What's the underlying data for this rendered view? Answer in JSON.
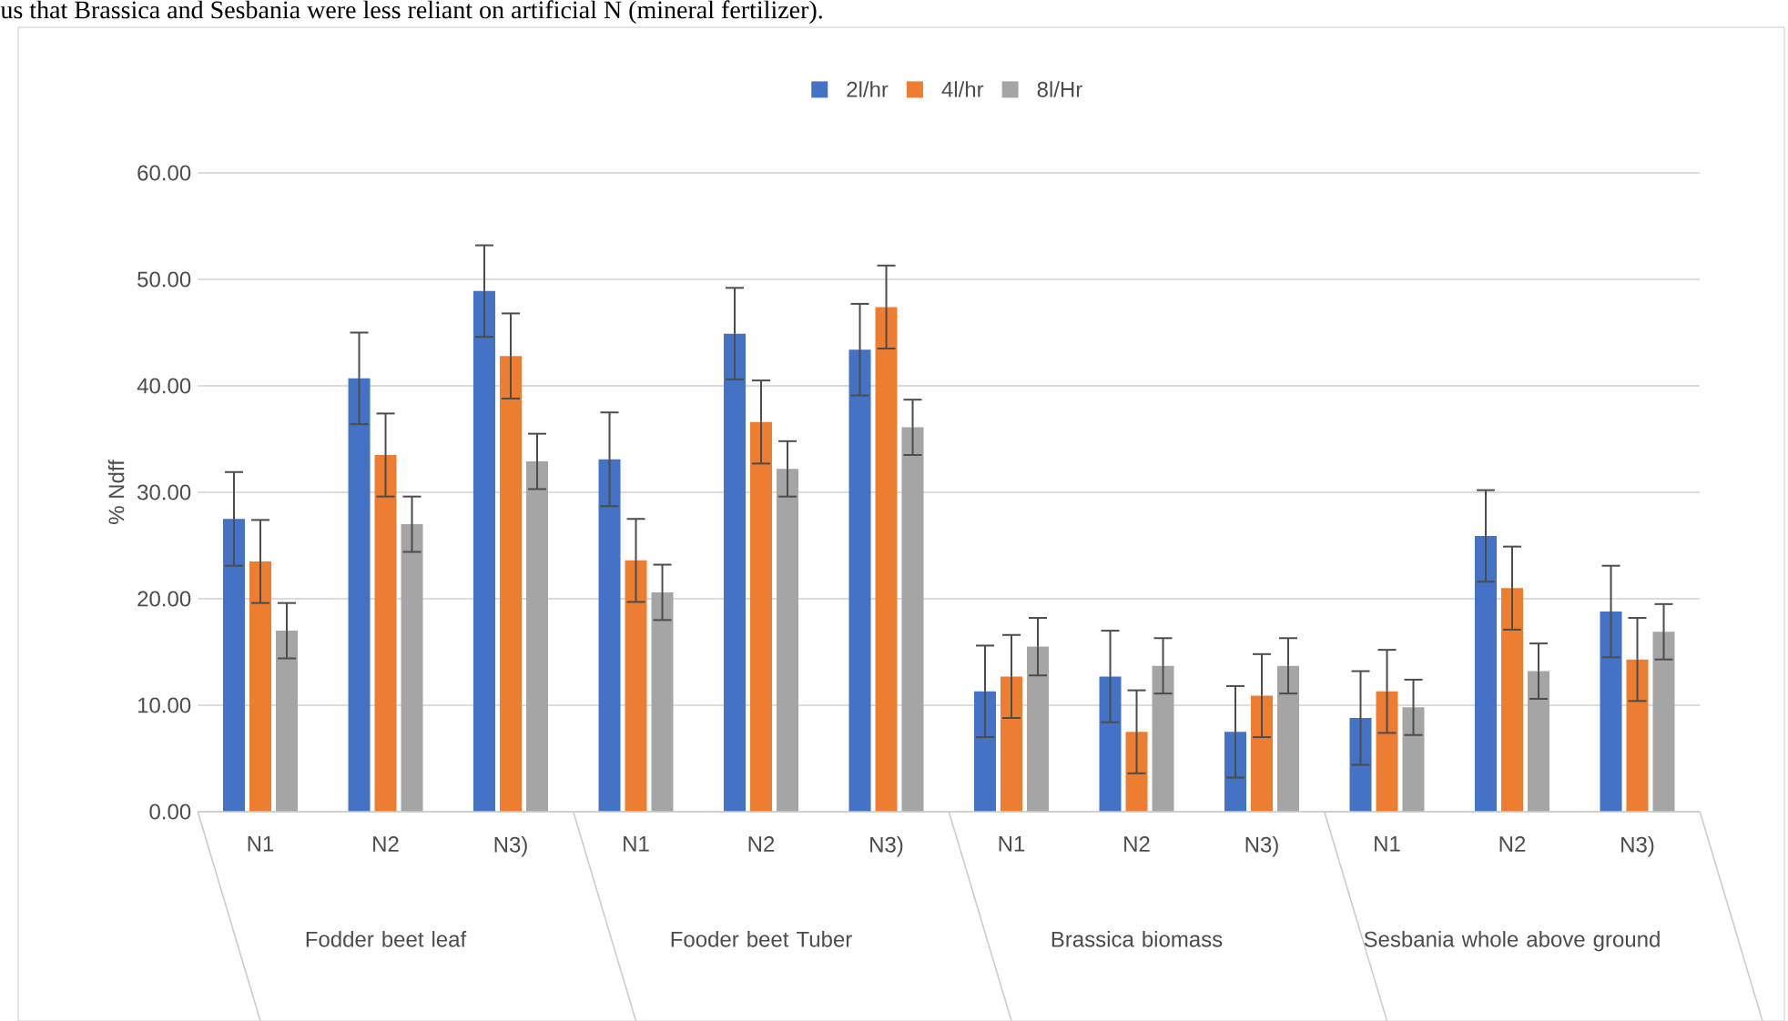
{
  "chart_data": {
    "type": "bar",
    "ylabel": "% Ndff",
    "annotations": [
      "us that Brassica and Sesbania were less reliant on artificial N (mineral fertilizer).",
      "Fodder beet leaf",
      "Fooder beet Tuber",
      "Brassica biomass",
      "Sesbania whole above ground"
    ],
    "categories": [
      "N1",
      "N2",
      "N3)",
      "N1",
      "N2",
      "N3)",
      "N1",
      "N2",
      "N3)",
      "N1",
      "N2",
      "N3)"
    ],
    "series": [
      {
        "name": "2l/hr",
        "color": "#4472c4",
        "values": [
          27.5,
          40.7,
          48.9,
          33.1,
          44.9,
          43.4,
          11.3,
          12.7,
          7.5,
          8.8,
          25.9,
          18.8
        ],
        "errors": [
          4.4,
          4.3,
          4.3,
          4.4,
          4.3,
          4.3,
          4.3,
          4.3,
          4.3,
          4.4,
          4.3,
          4.3
        ]
      },
      {
        "name": "4l/hr",
        "color": "#ed7d31",
        "values": [
          23.5,
          33.5,
          42.8,
          23.6,
          36.6,
          47.4,
          12.7,
          7.5,
          10.9,
          11.3,
          21.0,
          14.3
        ],
        "errors": [
          3.9,
          3.9,
          4.0,
          3.9,
          3.9,
          3.9,
          3.9,
          3.9,
          3.9,
          3.9,
          3.9,
          3.9
        ]
      },
      {
        "name": "8l/Hr",
        "color": "#a5a5a5",
        "values": [
          17.0,
          27.0,
          32.9,
          20.6,
          32.2,
          36.1,
          15.5,
          13.7,
          13.7,
          9.8,
          13.2,
          16.9
        ],
        "errors": [
          2.6,
          2.6,
          2.6,
          2.6,
          2.6,
          2.6,
          2.7,
          2.6,
          2.6,
          2.6,
          2.6,
          2.6
        ]
      }
    ],
    "ylim": [
      0,
      60
    ],
    "yticks": [
      {
        "value": 0,
        "label": "0.00"
      },
      {
        "value": 10,
        "label": "10.00"
      },
      {
        "value": 20,
        "label": "20.00"
      },
      {
        "value": 30,
        "label": "30.00"
      },
      {
        "value": 40,
        "label": "40.00"
      },
      {
        "value": 50,
        "label": "50.00"
      },
      {
        "value": 60,
        "label": "60.00"
      }
    ],
    "grid": "y",
    "legend": "top"
  }
}
